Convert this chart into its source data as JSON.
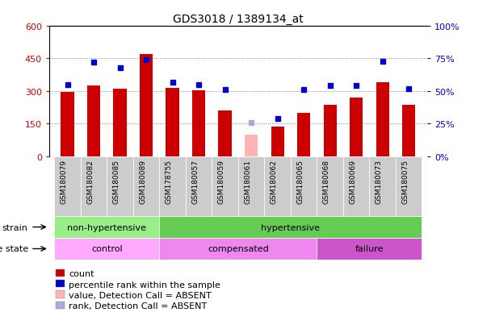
{
  "title": "GDS3018 / 1389134_at",
  "samples": [
    "GSM180079",
    "GSM180082",
    "GSM180085",
    "GSM180089",
    "GSM178755",
    "GSM180057",
    "GSM180059",
    "GSM180061",
    "GSM180062",
    "GSM180065",
    "GSM180068",
    "GSM180069",
    "GSM180073",
    "GSM180075"
  ],
  "counts": [
    295,
    325,
    310,
    470,
    315,
    305,
    210,
    100,
    135,
    200,
    235,
    270,
    340,
    235
  ],
  "absent_count_idx": [
    7
  ],
  "percentile_ranks": [
    55,
    72,
    68,
    74,
    57,
    55,
    51,
    26,
    29,
    51,
    54,
    54,
    73,
    52
  ],
  "absent_rank_idx": [
    7
  ],
  "ylim_left": [
    0,
    600
  ],
  "ylim_right": [
    0,
    100
  ],
  "yticks_left": [
    0,
    150,
    300,
    450,
    600
  ],
  "yticks_right": [
    0,
    25,
    50,
    75,
    100
  ],
  "bar_color": "#cc0000",
  "absent_bar_color": "#ffb3b3",
  "dot_color": "#0000cc",
  "absent_dot_color": "#aaaadd",
  "strain_groups": [
    {
      "label": "non-hypertensive",
      "start": 0,
      "end": 4,
      "color": "#99ee88"
    },
    {
      "label": "hypertensive",
      "start": 4,
      "end": 14,
      "color": "#66cc55"
    }
  ],
  "disease_groups": [
    {
      "label": "control",
      "start": 0,
      "end": 4,
      "color": "#ffaaff"
    },
    {
      "label": "compensated",
      "start": 4,
      "end": 10,
      "color": "#ee88ee"
    },
    {
      "label": "failure",
      "start": 10,
      "end": 14,
      "color": "#cc55cc"
    }
  ],
  "legend_items": [
    {
      "label": "count",
      "color": "#cc0000"
    },
    {
      "label": "percentile rank within the sample",
      "color": "#0000cc"
    },
    {
      "label": "value, Detection Call = ABSENT",
      "color": "#ffb3b3"
    },
    {
      "label": "rank, Detection Call = ABSENT",
      "color": "#aaaadd"
    }
  ],
  "left_axis_color": "#cc0000",
  "right_axis_color": "#0000cc",
  "tick_bg_color": "#cccccc"
}
